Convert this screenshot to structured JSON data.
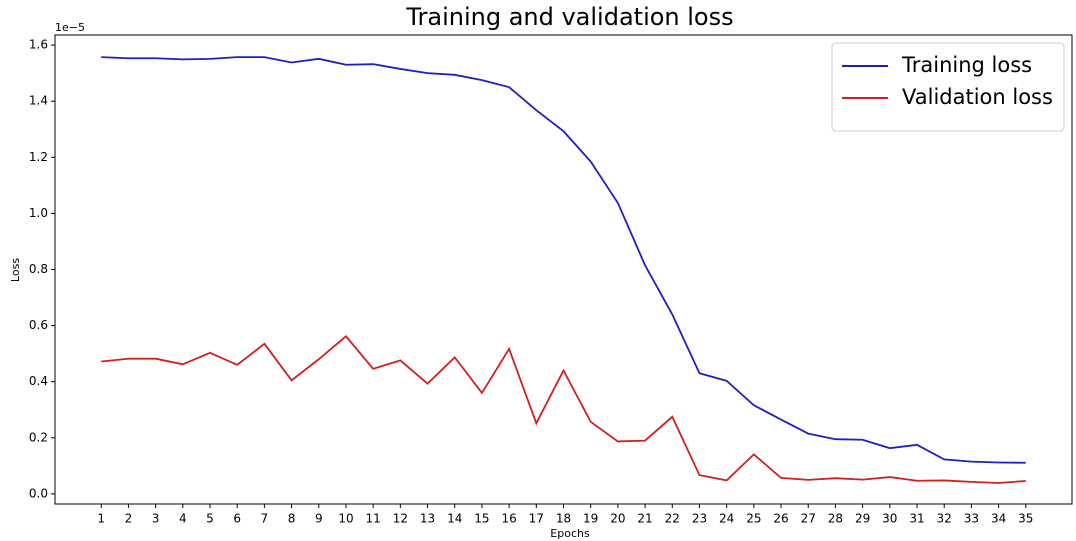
{
  "chart_data": {
    "type": "line",
    "title": "Training and validation loss",
    "x_label": "Epochs",
    "y_label": "Loss",
    "offset_label": "1e−5",
    "x": [
      1,
      2,
      3,
      4,
      5,
      6,
      7,
      8,
      9,
      10,
      11,
      12,
      13,
      14,
      15,
      16,
      17,
      18,
      19,
      20,
      21,
      22,
      23,
      24,
      25,
      26,
      27,
      28,
      29,
      30,
      31,
      32,
      33,
      34,
      35
    ],
    "series": [
      {
        "name": "Training loss",
        "color": "#1f1fbf",
        "values": [
          1.557,
          1.553,
          1.553,
          1.549,
          1.551,
          1.557,
          1.557,
          1.538,
          1.551,
          1.53,
          1.532,
          1.515,
          1.5,
          1.494,
          1.475,
          1.45,
          1.368,
          1.293,
          1.185,
          1.037,
          0.815,
          0.64,
          0.43,
          0.403,
          0.316,
          0.265,
          0.215,
          0.195,
          0.193,
          0.163,
          0.175,
          0.123,
          0.115,
          0.112,
          0.111
        ]
      },
      {
        "name": "Validation loss",
        "color": "#d02020",
        "values": [
          0.472,
          0.482,
          0.482,
          0.462,
          0.503,
          0.46,
          0.535,
          0.405,
          0.48,
          0.562,
          0.446,
          0.476,
          0.393,
          0.487,
          0.36,
          0.517,
          0.252,
          0.44,
          0.257,
          0.187,
          0.19,
          0.275,
          0.067,
          0.048,
          0.141,
          0.057,
          0.05,
          0.056,
          0.051,
          0.06,
          0.047,
          0.048,
          0.043,
          0.039,
          0.046
        ]
      }
    ],
    "xlim": [
      -0.7,
      36.7
    ],
    "xticks": [
      1,
      2,
      3,
      4,
      5,
      6,
      7,
      8,
      9,
      10,
      11,
      12,
      13,
      14,
      15,
      16,
      17,
      18,
      19,
      20,
      21,
      22,
      23,
      24,
      25,
      26,
      27,
      28,
      29,
      30,
      31,
      32,
      33,
      34,
      35
    ],
    "ylim": [
      -0.036,
      1.636
    ],
    "yticks": [
      {
        "value": 0,
        "label": "0.0"
      },
      0.2,
      0.4,
      0.6,
      0.8,
      {
        "value": 1,
        "label": "1.0"
      },
      1.2,
      1.4,
      1.6
    ],
    "grid": false,
    "legend": "upper right"
  }
}
